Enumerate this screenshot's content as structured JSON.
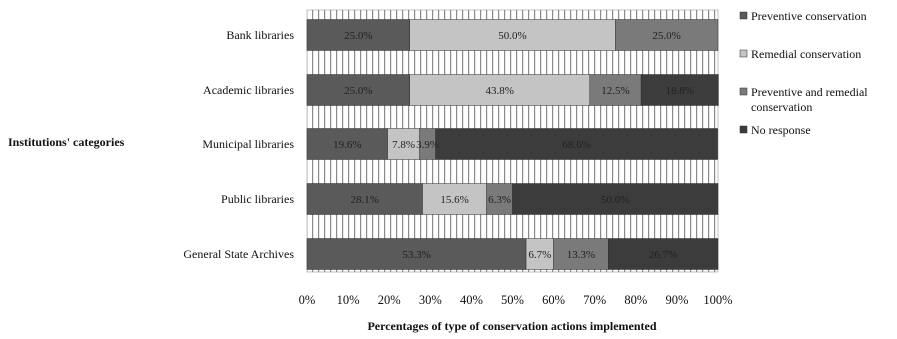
{
  "chart_data": {
    "type": "bar",
    "stacked": true,
    "orientation": "horizontal",
    "categories": [
      "Bank libraries",
      "Academic libraries",
      "Municipal libraries",
      "Public libraries",
      "General State Archives"
    ],
    "series": [
      {
        "name": "Preventive conservation",
        "color": "#5a5a5a",
        "values": [
          25.0,
          25.0,
          19.6,
          28.1,
          53.3
        ],
        "labels": [
          "25.0%",
          "25.0%",
          "19.6%",
          "28.1%",
          "53.3%"
        ]
      },
      {
        "name": "Remedial conservation",
        "color": "#c4c4c4",
        "values": [
          50.0,
          43.8,
          7.8,
          15.6,
          6.7
        ],
        "labels": [
          "50.0%",
          "43.8%",
          "7.8%",
          "15.6%",
          "6.7%"
        ]
      },
      {
        "name": "Preventive and remedial conservation",
        "color": "#7a7a7a",
        "values": [
          25.0,
          12.5,
          3.9,
          6.3,
          13.3
        ],
        "labels": [
          "25.0%",
          "12.5%",
          "3.9%",
          "6.3%",
          "13.3%"
        ]
      },
      {
        "name": "No response",
        "color": "#3c3c3c",
        "values": [
          0,
          18.8,
          68.6,
          50.0,
          26.7
        ],
        "labels": [
          "",
          "18.8%",
          "68.6%",
          "50.0%",
          "26.7%"
        ]
      }
    ],
    "xlim": [
      0,
      100
    ],
    "xticks": [
      "0%",
      "10%",
      "20%",
      "30%",
      "40%",
      "50%",
      "60%",
      "70%",
      "80%",
      "90%",
      "100%"
    ],
    "xlabel": "Percentages of type of conservation actions implemented",
    "ylabel": "Institutions' categories",
    "legend_position": "right",
    "background_pattern": "vertical-stripes"
  }
}
